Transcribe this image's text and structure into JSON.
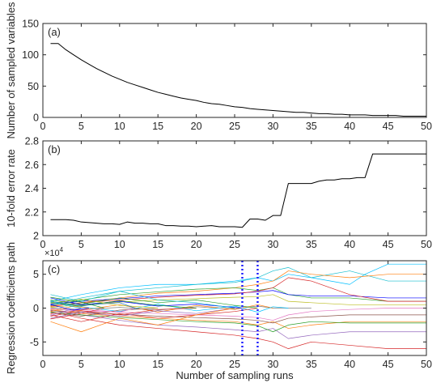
{
  "chart_data": [
    {
      "id": "a",
      "type": "line",
      "panel_label": "(a)",
      "xlabel": "",
      "ylabel": "Number of sampled variables",
      "xlim": [
        0,
        50
      ],
      "ylim": [
        0,
        150
      ],
      "xticks": [
        0,
        5,
        10,
        15,
        20,
        25,
        30,
        35,
        40,
        45,
        50
      ],
      "yticks": [
        0,
        50,
        100,
        150
      ],
      "ytick_labels": [
        "0",
        "50",
        "100",
        "150"
      ],
      "grid": false,
      "series": [
        {
          "color": "#000000",
          "x": [
            1,
            2,
            3,
            4,
            5,
            6,
            7,
            8,
            9,
            10,
            11,
            12,
            13,
            14,
            15,
            16,
            17,
            18,
            19,
            20,
            21,
            22,
            23,
            24,
            25,
            26,
            27,
            28,
            29,
            30,
            31,
            32,
            33,
            34,
            35,
            36,
            37,
            38,
            39,
            40,
            41,
            42,
            43,
            44,
            45,
            46,
            47,
            48,
            49,
            50
          ],
          "values": [
            118,
            118,
            108,
            100,
            92,
            85,
            78,
            72,
            66,
            61,
            56,
            52,
            48,
            44,
            40,
            37,
            34,
            31,
            29,
            27,
            24,
            22,
            21,
            19,
            17,
            16,
            14,
            13,
            12,
            11,
            10,
            9,
            8,
            8,
            7,
            6,
            6,
            5,
            5,
            4,
            4,
            4,
            3,
            3,
            3,
            3,
            2,
            2,
            2,
            2
          ]
        }
      ]
    },
    {
      "id": "b",
      "type": "line",
      "panel_label": "(b)",
      "xlabel": "",
      "ylabel": "10-fold error rate",
      "xlim": [
        0,
        50
      ],
      "ylim": [
        2,
        2.8
      ],
      "xticks": [
        0,
        5,
        10,
        15,
        20,
        25,
        30,
        35,
        40,
        45,
        50
      ],
      "yticks": [
        2,
        2.2,
        2.4,
        2.6,
        2.8
      ],
      "ytick_labels": [
        "2",
        "2.2",
        "2.4",
        "2.6",
        "2.8"
      ],
      "grid": false,
      "series": [
        {
          "color": "#000000",
          "x": [
            1,
            2,
            3,
            4,
            5,
            6,
            7,
            8,
            9,
            10,
            11,
            12,
            13,
            14,
            15,
            16,
            17,
            18,
            19,
            20,
            21,
            22,
            23,
            24,
            25,
            26,
            27,
            28,
            29,
            30,
            31,
            32,
            33,
            34,
            35,
            36,
            37,
            38,
            39,
            40,
            41,
            42,
            43,
            44,
            45,
            46,
            47,
            48,
            49,
            50
          ],
          "values": [
            2.135,
            2.135,
            2.135,
            2.13,
            2.115,
            2.11,
            2.105,
            2.1,
            2.1,
            2.095,
            2.115,
            2.105,
            2.105,
            2.1,
            2.1,
            2.085,
            2.085,
            2.08,
            2.08,
            2.075,
            2.08,
            2.085,
            2.075,
            2.075,
            2.075,
            2.07,
            2.14,
            2.14,
            2.13,
            2.17,
            2.17,
            2.44,
            2.44,
            2.44,
            2.44,
            2.46,
            2.47,
            2.47,
            2.48,
            2.48,
            2.49,
            2.49,
            2.69,
            2.69,
            2.69,
            2.69,
            2.69,
            2.69,
            2.69,
            2.69
          ]
        }
      ]
    },
    {
      "id": "c",
      "type": "line",
      "panel_label": "(c)",
      "xlabel": "Number of sampling runs",
      "ylabel": "Regression coefficients path",
      "y_multiplier_label": "×10^4",
      "y_multiplier_base": "×10",
      "y_multiplier_exp": "4",
      "xlim": [
        0,
        50
      ],
      "ylim": [
        -7,
        7
      ],
      "xticks": [
        0,
        5,
        10,
        15,
        20,
        25,
        30,
        35,
        40,
        45,
        50
      ],
      "xtick_labels": [
        "0",
        "5",
        "10",
        "15",
        "20",
        "25",
        "30",
        "35",
        "40",
        "45",
        "50"
      ],
      "yticks": [
        -5,
        0,
        5
      ],
      "ytick_labels": [
        "-5",
        "0",
        "5"
      ],
      "grid": false,
      "vlines": [
        {
          "x": 26,
          "color": "#1f1fff"
        },
        {
          "x": 28,
          "color": "#1f1fff"
        }
      ],
      "series": [
        {
          "color": "#00bfff",
          "x": [
            1,
            5,
            10,
            15,
            20,
            25,
            28,
            30,
            32,
            35,
            40,
            42,
            45,
            50
          ],
          "values": [
            1.0,
            2.0,
            3.0,
            3.5,
            3.5,
            4.0,
            4.5,
            4.0,
            5.0,
            4.5,
            3.5,
            5.0,
            6.5,
            6.5
          ]
        },
        {
          "color": "#17becf",
          "x": [
            1,
            5,
            10,
            15,
            20,
            25,
            28,
            30,
            32,
            35,
            40,
            45,
            50
          ],
          "values": [
            0.5,
            1.5,
            2.5,
            3.0,
            3.5,
            3.8,
            4.5,
            5.5,
            6.0,
            4.5,
            5.5,
            4.0,
            4.0
          ]
        },
        {
          "color": "#d62728",
          "x": [
            1,
            5,
            10,
            15,
            20,
            25,
            28,
            30,
            32,
            35,
            40,
            45,
            50
          ],
          "values": [
            -0.5,
            -1.5,
            -2.5,
            -3.0,
            -3.5,
            -4.0,
            -4.5,
            -5.0,
            -6.0,
            -5.0,
            -5.5,
            -6.0,
            -6.0
          ]
        },
        {
          "color": "#ff7f0e",
          "x": [
            1,
            5,
            10,
            15,
            20,
            25,
            28,
            30,
            32,
            35,
            40,
            45,
            50
          ],
          "values": [
            0.2,
            0.8,
            1.5,
            2.2,
            2.5,
            3.0,
            3.5,
            4.0,
            5.5,
            5.0,
            4.5,
            5.0,
            5.0
          ]
        },
        {
          "color": "#9467bd",
          "x": [
            1,
            5,
            10,
            15,
            20,
            25,
            28,
            30,
            32,
            35,
            40,
            45,
            50
          ],
          "values": [
            -0.3,
            -1.0,
            -1.8,
            -2.5,
            -2.8,
            -3.2,
            -3.5,
            -3.0,
            -4.5,
            -4.0,
            -3.5,
            -3.5,
            -3.5
          ]
        },
        {
          "color": "#2ca02c",
          "x": [
            1,
            5,
            10,
            15,
            20,
            25,
            28,
            30,
            32,
            35,
            40,
            45,
            50
          ],
          "values": [
            0.4,
            1.2,
            2.0,
            2.4,
            2.8,
            3.0,
            2.6,
            3.0,
            2.0,
            1.5,
            1.5,
            1.0,
            1.0
          ]
        },
        {
          "color": "#ff7f0e",
          "x": [
            1,
            5,
            10,
            15,
            20,
            25,
            28,
            30,
            32,
            35,
            40,
            45,
            50
          ],
          "values": [
            -0.2,
            -0.8,
            -1.2,
            -1.5,
            -1.8,
            -2.0,
            -2.5,
            -2.0,
            -3.0,
            -2.5,
            -2.0,
            -2.0,
            -2.0
          ]
        },
        {
          "color": "#0000ff",
          "x": [
            1,
            5,
            10,
            15,
            20,
            25,
            28,
            30,
            32,
            35,
            40,
            45,
            50
          ],
          "values": [
            0.6,
            1.0,
            1.4,
            1.8,
            2.0,
            2.2,
            2.4,
            2.6,
            2.0,
            1.8,
            1.8,
            1.5,
            1.5
          ]
        },
        {
          "color": "#d62728",
          "x": [
            1,
            5,
            10,
            15,
            20,
            25,
            28,
            30,
            32,
            35,
            40,
            45,
            50
          ],
          "values": [
            0.3,
            0.8,
            1.2,
            1.6,
            1.9,
            2.1,
            2.5,
            3.0,
            4.5,
            4.0,
            2.0,
            1.0,
            1.0
          ]
        },
        {
          "color": "#2ca02c",
          "x": [
            1,
            5,
            10,
            15,
            20,
            25,
            28,
            30,
            32,
            35,
            40,
            45,
            50
          ],
          "values": [
            -0.6,
            -1.0,
            -1.4,
            -1.7,
            -2.0,
            -2.2,
            -2.6,
            -3.5,
            -2.5,
            -2.0,
            -2.2,
            -2.2,
            -2.2
          ]
        },
        {
          "color": "#8c564b",
          "x": [
            1,
            5,
            10,
            15,
            20,
            25,
            28,
            30,
            32,
            35,
            40,
            45,
            50
          ],
          "values": [
            -0.4,
            -0.6,
            -0.9,
            -1.2,
            -1.4,
            -1.6,
            -1.8,
            -2.2,
            -1.5,
            -1.3,
            -1.0,
            -1.0,
            -1.0
          ]
        },
        {
          "color": "#bcbd22",
          "x": [
            1,
            5,
            10,
            15,
            20,
            25,
            28,
            30,
            32,
            35,
            40,
            45,
            50
          ],
          "values": [
            0.1,
            0.5,
            0.9,
            1.2,
            1.4,
            1.6,
            1.7,
            2.0,
            1.0,
            0.8,
            0.5,
            0.5,
            0.5
          ]
        },
        {
          "color": "#e377c2",
          "x": [
            1,
            5,
            10,
            15,
            20,
            25,
            28,
            30,
            32,
            35,
            40,
            45,
            50
          ],
          "values": [
            -0.1,
            -0.4,
            -0.6,
            -0.8,
            -1.0,
            -1.2,
            -1.4,
            -1.8,
            -1.0,
            -0.5,
            -0.2,
            0.0,
            0.0
          ]
        },
        {
          "color": "#7f7f7f",
          "x": [
            1,
            5,
            10,
            15,
            20,
            25,
            28,
            30,
            32,
            35
          ],
          "values": [
            0.0,
            -0.2,
            0.1,
            -0.3,
            0.2,
            -0.1,
            0.3,
            0.0,
            0.0,
            0.0
          ]
        },
        {
          "color": "#ff7f0e",
          "x": [
            1,
            5,
            10,
            15,
            20,
            25,
            28,
            30
          ],
          "values": [
            -0.8,
            -0.3,
            0.5,
            -0.6,
            0.4,
            -0.2,
            0.5,
            0.0
          ]
        },
        {
          "color": "#00bfff",
          "x": [
            1,
            5,
            10,
            15,
            20,
            25,
            28,
            30,
            32
          ],
          "values": [
            0.8,
            0.2,
            -0.5,
            0.6,
            -0.4,
            0.3,
            -0.6,
            0.2,
            0.0
          ]
        },
        {
          "color": "#d62728",
          "x": [
            1,
            5,
            10,
            15,
            20,
            25,
            28
          ],
          "values": [
            -1.0,
            -2.0,
            -0.8,
            -1.5,
            -1.0,
            -0.5,
            0.0
          ]
        },
        {
          "color": "#2ca02c",
          "x": [
            1,
            5,
            10,
            15,
            20,
            25,
            28
          ],
          "values": [
            1.2,
            0.6,
            1.5,
            0.8,
            1.2,
            0.4,
            0.0
          ]
        },
        {
          "color": "#9467bd",
          "x": [
            1,
            5,
            10,
            15,
            20,
            25
          ],
          "values": [
            -1.5,
            -0.6,
            -1.2,
            -0.4,
            -0.8,
            0.0
          ]
        },
        {
          "color": "#0000ff",
          "x": [
            1,
            5,
            10,
            15,
            20,
            26
          ],
          "values": [
            1.5,
            0.5,
            1.0,
            0.3,
            0.6,
            0.0
          ]
        },
        {
          "color": "#ff7f0e",
          "x": [
            1,
            5,
            10,
            15,
            20,
            25
          ],
          "values": [
            -2.0,
            -3.5,
            -1.5,
            -2.5,
            -1.0,
            0.0
          ]
        },
        {
          "color": "#17becf",
          "x": [
            1,
            5,
            10,
            15,
            20,
            25
          ],
          "values": [
            2.0,
            1.0,
            2.5,
            1.2,
            0.8,
            0.0
          ]
        },
        {
          "color": "#d62728",
          "x": [
            1,
            5,
            10,
            15,
            20
          ],
          "values": [
            -1.2,
            -0.4,
            -1.0,
            -0.2,
            0.0
          ]
        },
        {
          "color": "#2ca02c",
          "x": [
            1,
            5,
            10,
            15,
            20
          ],
          "values": [
            0.9,
            0.3,
            1.1,
            0.4,
            0.0
          ]
        },
        {
          "color": "#8c564b",
          "x": [
            1,
            5,
            10,
            15
          ],
          "values": [
            -0.7,
            -1.2,
            -0.3,
            0.0
          ]
        },
        {
          "color": "#bcbd22",
          "x": [
            1,
            5,
            10,
            15
          ],
          "values": [
            0.7,
            1.3,
            0.4,
            0.0
          ]
        },
        {
          "color": "#e377c2",
          "x": [
            1,
            5,
            10,
            12
          ],
          "values": [
            -0.9,
            -0.2,
            -0.6,
            0.0
          ]
        },
        {
          "color": "#1f77b4",
          "x": [
            1,
            5,
            10,
            12
          ],
          "values": [
            1.0,
            0.4,
            0.8,
            0.0
          ]
        },
        {
          "color": "#d62728",
          "x": [
            1,
            5,
            8
          ],
          "values": [
            -1.6,
            -0.8,
            0.0
          ]
        },
        {
          "color": "#2ca02c",
          "x": [
            1,
            5,
            8
          ],
          "values": [
            1.6,
            0.9,
            0.0
          ]
        },
        {
          "color": "#ff7f0e",
          "x": [
            1,
            4,
            6
          ],
          "values": [
            -0.5,
            0.3,
            0.0
          ]
        },
        {
          "color": "#0000ff",
          "x": [
            1,
            4,
            6
          ],
          "values": [
            0.5,
            -0.3,
            0.0
          ]
        },
        {
          "color": "#9467bd",
          "x": [
            1,
            3,
            5
          ],
          "values": [
            -1.1,
            -0.4,
            0.0
          ]
        },
        {
          "color": "#17becf",
          "x": [
            1,
            3,
            5
          ],
          "values": [
            1.1,
            0.4,
            0.0
          ]
        }
      ]
    }
  ]
}
